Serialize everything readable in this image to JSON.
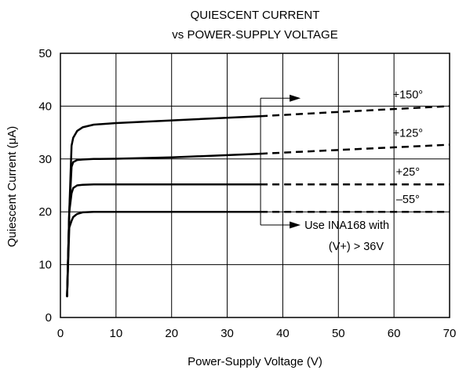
{
  "chart_data": {
    "type": "line",
    "title": [
      "QUIESCENT CURRENT",
      "vs POWER-SUPPLY VOLTAGE"
    ],
    "xlabel": "Power-Supply Voltage (V)",
    "ylabel": "Quiescent Current (μA)",
    "xlim": [
      0,
      70
    ],
    "ylim": [
      0,
      50
    ],
    "xticks": [
      0,
      10,
      20,
      30,
      40,
      50,
      60,
      70
    ],
    "yticks": [
      0,
      10,
      20,
      30,
      40,
      50
    ],
    "grid": true,
    "solid_until_x": 36,
    "series": [
      {
        "name": "+150°",
        "x": [
          1.2,
          1.6,
          2.0,
          2.3,
          3.0,
          4.0,
          6.0,
          10,
          20,
          36,
          50,
          70
        ],
        "y": [
          4,
          20,
          32.5,
          34.0,
          35.3,
          36.0,
          36.5,
          36.8,
          37.3,
          38.1,
          38.9,
          40.0
        ]
      },
      {
        "name": "+125°",
        "x": [
          1.2,
          1.6,
          2.0,
          2.3,
          3.0,
          4.0,
          6.0,
          10,
          20,
          36,
          50,
          70
        ],
        "y": [
          4,
          20,
          28.5,
          29.4,
          29.8,
          29.9,
          30.0,
          30.05,
          30.3,
          31.0,
          31.7,
          32.7
        ]
      },
      {
        "name": "+25°",
        "x": [
          1.2,
          1.6,
          2.0,
          2.3,
          3.0,
          4.0,
          6.0,
          10,
          20,
          36,
          50,
          70
        ],
        "y": [
          4,
          20,
          23.5,
          24.5,
          25.0,
          25.1,
          25.2,
          25.2,
          25.2,
          25.2,
          25.2,
          25.2
        ]
      },
      {
        "name": "–55°",
        "x": [
          1.2,
          1.6,
          2.0,
          2.3,
          3.0,
          4.0,
          6.0,
          10,
          20,
          36,
          50,
          70
        ],
        "y": [
          4,
          17,
          18.3,
          19.0,
          19.6,
          19.9,
          20.0,
          20.0,
          20.0,
          20.0,
          20.0,
          20.0
        ]
      }
    ],
    "annotation": {
      "lines": [
        "Use INA168 with",
        "(V+) > 36V"
      ]
    }
  }
}
